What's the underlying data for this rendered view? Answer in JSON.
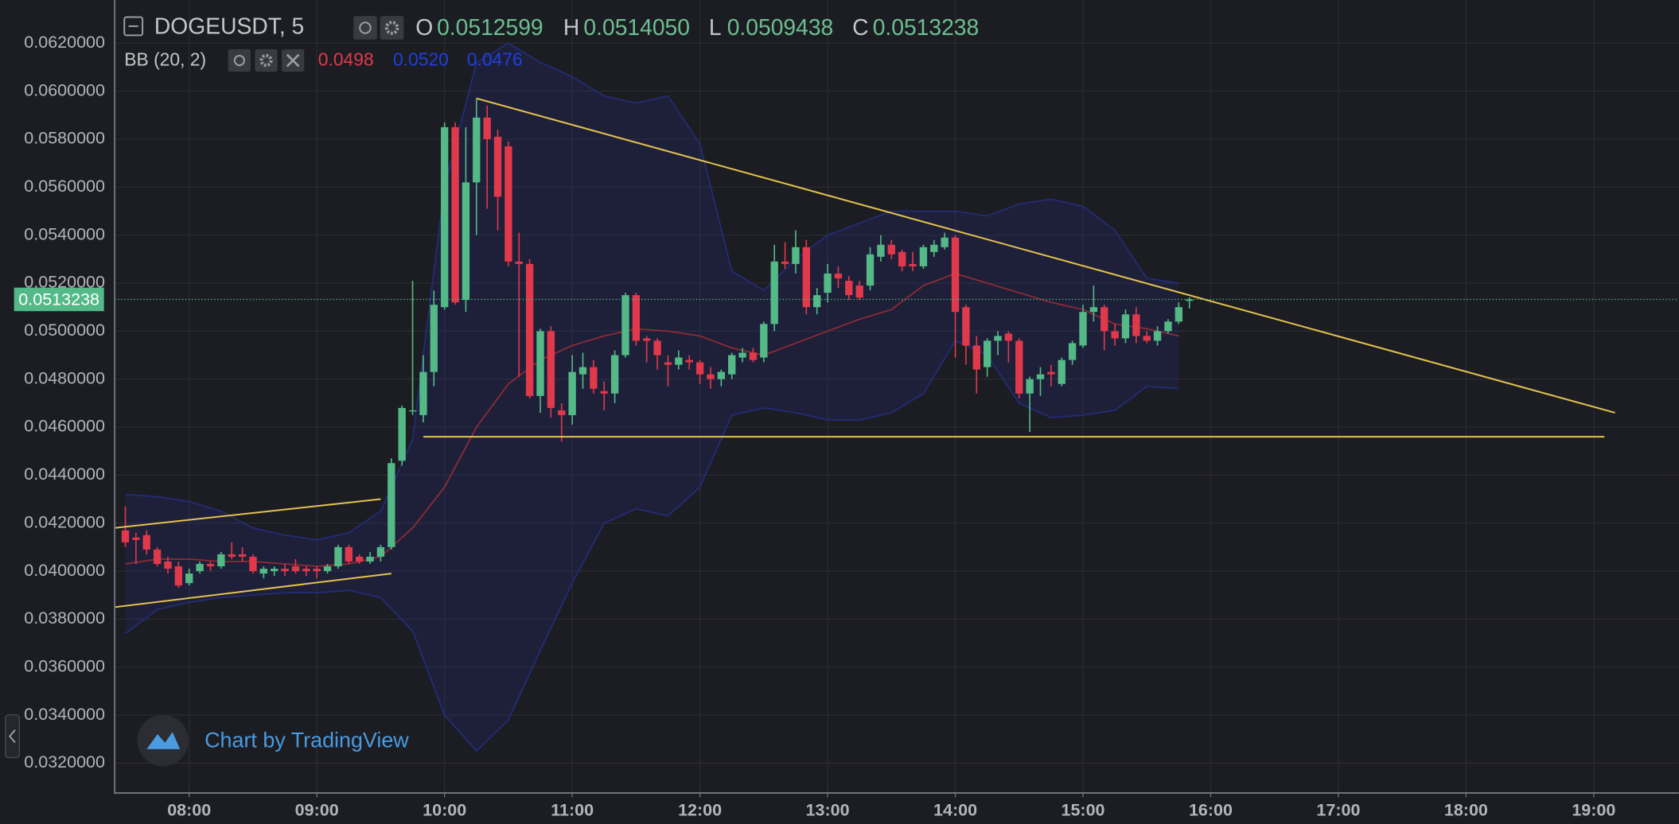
{
  "header": {
    "symbol": "DOGEUSDT, 5",
    "o_label": "O",
    "o": "0.0512599",
    "h_label": "H",
    "h": "0.0514050",
    "l_label": "L",
    "l": "0.0509438",
    "c_label": "C",
    "c": "0.0513238"
  },
  "indicator": {
    "name": "BB (20, 2)",
    "basis": "0.0498",
    "upper": "0.0520",
    "lower": "0.0476"
  },
  "watermark": "Chart by TradingView",
  "chart_data": {
    "type": "candlestick",
    "x": [
      "07:30",
      "07:35",
      "07:40",
      "07:45",
      "07:50",
      "07:55",
      "08:00",
      "08:05",
      "08:10",
      "08:15",
      "08:20",
      "08:25",
      "08:30",
      "08:35",
      "08:40",
      "08:45",
      "08:50",
      "08:55",
      "09:00",
      "09:05",
      "09:10",
      "09:15",
      "09:20",
      "09:25",
      "09:30",
      "09:35",
      "09:40",
      "09:45",
      "09:50",
      "09:55",
      "10:00",
      "10:05",
      "10:10",
      "10:15",
      "10:20",
      "10:25",
      "10:30",
      "10:35",
      "10:40",
      "10:45",
      "10:50",
      "10:55",
      "11:00",
      "11:05",
      "11:10",
      "11:15",
      "11:20",
      "11:25",
      "11:30",
      "11:35",
      "11:40",
      "11:45",
      "11:50",
      "11:55",
      "12:00",
      "12:05",
      "12:10",
      "12:15",
      "12:20",
      "12:25",
      "12:30",
      "12:35",
      "12:40",
      "12:45",
      "12:50",
      "12:55",
      "13:00",
      "13:05",
      "13:10",
      "13:15",
      "13:20",
      "13:25",
      "13:30",
      "13:35",
      "13:40",
      "13:45",
      "13:50",
      "13:55",
      "14:00",
      "14:05",
      "14:10",
      "14:15",
      "14:20",
      "14:25",
      "14:30",
      "14:35",
      "14:40",
      "14:45",
      "14:50",
      "14:55",
      "15:00",
      "15:05",
      "15:10",
      "15:15",
      "15:20",
      "15:25",
      "15:30",
      "15:35",
      "15:40",
      "15:45",
      "15:50"
    ],
    "open": [
      0.0417,
      0.0414,
      0.0415,
      0.0409,
      0.0404,
      0.0402,
      0.0395,
      0.04,
      0.0403,
      0.0402,
      0.0407,
      0.0407,
      0.0406,
      0.0399,
      0.04,
      0.0401,
      0.0402,
      0.0401,
      0.0401,
      0.04,
      0.0402,
      0.041,
      0.0406,
      0.0404,
      0.0406,
      0.041,
      0.0446,
      0.0467,
      0.0465,
      0.0483,
      0.051,
      0.0585,
      0.0513,
      0.0562,
      0.0589,
      0.0581,
      0.0577,
      0.0529,
      0.0528,
      0.0473,
      0.05,
      0.0467,
      0.0465,
      0.0482,
      0.0485,
      0.0475,
      0.0474,
      0.049,
      0.0515,
      0.0497,
      0.0496,
      0.0487,
      0.0486,
      0.0488,
      0.0487,
      0.0482,
      0.048,
      0.0482,
      0.0489,
      0.0491,
      0.0489,
      0.0503,
      0.0529,
      0.0528,
      0.0535,
      0.051,
      0.0516,
      0.0524,
      0.0521,
      0.0519,
      0.0519,
      0.0531,
      0.0536,
      0.0533,
      0.0528,
      0.0527,
      0.0533,
      0.0535,
      0.0539,
      0.051,
      0.0494,
      0.0485,
      0.0496,
      0.0499,
      0.0496,
      0.0474,
      0.048,
      0.0483,
      0.0478,
      0.0488,
      0.0494,
      0.0508,
      0.051,
      0.05,
      0.0497,
      0.0507,
      0.0498,
      0.0496,
      0.05,
      0.0504,
      0.0512599
    ],
    "high": [
      0.0427,
      0.0416,
      0.0417,
      0.041,
      0.0406,
      0.0404,
      0.0401,
      0.0404,
      0.0404,
      0.0408,
      0.0412,
      0.041,
      0.0407,
      0.0402,
      0.0402,
      0.0403,
      0.0405,
      0.0402,
      0.0402,
      0.0403,
      0.0411,
      0.0411,
      0.0407,
      0.0408,
      0.0411,
      0.0447,
      0.0469,
      0.0521,
      0.049,
      0.0517,
      0.0587,
      0.0587,
      0.0585,
      0.0597,
      0.0594,
      0.0584,
      0.0579,
      0.0541,
      0.053,
      0.0501,
      0.0502,
      0.047,
      0.049,
      0.0491,
      0.0488,
      0.0479,
      0.0492,
      0.0516,
      0.0516,
      0.0498,
      0.0497,
      0.049,
      0.0492,
      0.049,
      0.0488,
      0.0485,
      0.0484,
      0.0491,
      0.0493,
      0.0493,
      0.0504,
      0.0536,
      0.0537,
      0.0542,
      0.0538,
      0.0518,
      0.0528,
      0.0527,
      0.0523,
      0.0521,
      0.0535,
      0.054,
      0.0538,
      0.0534,
      0.0533,
      0.0536,
      0.0538,
      0.0541,
      0.054,
      0.0511,
      0.0498,
      0.0497,
      0.05,
      0.05,
      0.0497,
      0.0481,
      0.0485,
      0.0486,
      0.0489,
      0.0496,
      0.0511,
      0.0519,
      0.0511,
      0.0503,
      0.0509,
      0.051,
      0.05,
      0.0502,
      0.0505,
      0.0512,
      0.051405
    ],
    "low": [
      0.041,
      0.0403,
      0.0407,
      0.0402,
      0.0399,
      0.0393,
      0.0394,
      0.0399,
      0.04,
      0.0401,
      0.0405,
      0.0404,
      0.0399,
      0.0397,
      0.0398,
      0.0398,
      0.0399,
      0.0398,
      0.0397,
      0.0399,
      0.0401,
      0.0403,
      0.0403,
      0.0403,
      0.0404,
      0.0409,
      0.0444,
      0.0465,
      0.0462,
      0.0477,
      0.0509,
      0.0511,
      0.0508,
      0.054,
      0.0551,
      0.0542,
      0.0527,
      0.0481,
      0.0472,
      0.0466,
      0.0464,
      0.0454,
      0.0461,
      0.0476,
      0.0474,
      0.0467,
      0.047,
      0.0489,
      0.0494,
      0.0487,
      0.0484,
      0.0477,
      0.0484,
      0.0484,
      0.0478,
      0.0476,
      0.0477,
      0.048,
      0.0487,
      0.0487,
      0.0487,
      0.05,
      0.0526,
      0.0524,
      0.0507,
      0.0507,
      0.0512,
      0.0518,
      0.0513,
      0.0513,
      0.0517,
      0.0529,
      0.053,
      0.0525,
      0.0525,
      0.0526,
      0.0531,
      0.0534,
      0.0489,
      0.0486,
      0.0474,
      0.0481,
      0.049,
      0.0487,
      0.0472,
      0.0458,
      0.0473,
      0.0477,
      0.0477,
      0.0486,
      0.0493,
      0.0504,
      0.0492,
      0.0494,
      0.0495,
      0.0495,
      0.0495,
      0.0494,
      0.0499,
      0.0503,
      0.0509438
    ],
    "close": [
      0.0412,
      0.0413,
      0.0409,
      0.0403,
      0.0401,
      0.0394,
      0.0399,
      0.0403,
      0.0402,
      0.0407,
      0.0406,
      0.0406,
      0.04,
      0.0401,
      0.0401,
      0.04,
      0.04,
      0.04,
      0.04,
      0.0402,
      0.041,
      0.0404,
      0.0404,
      0.0406,
      0.041,
      0.0445,
      0.0468,
      0.0467,
      0.0483,
      0.0511,
      0.0585,
      0.0512,
      0.0562,
      0.0589,
      0.058,
      0.0556,
      0.0529,
      0.0528,
      0.0473,
      0.05,
      0.0468,
      0.0465,
      0.0483,
      0.0485,
      0.0476,
      0.0474,
      0.049,
      0.0515,
      0.0496,
      0.0496,
      0.049,
      0.0486,
      0.0489,
      0.0487,
      0.0482,
      0.048,
      0.0483,
      0.049,
      0.0491,
      0.0488,
      0.0503,
      0.0529,
      0.0528,
      0.0535,
      0.051,
      0.0515,
      0.0524,
      0.0522,
      0.0515,
      0.0514,
      0.0532,
      0.0536,
      0.0532,
      0.0527,
      0.0527,
      0.0535,
      0.0536,
      0.0539,
      0.0508,
      0.0494,
      0.0484,
      0.0496,
      0.0498,
      0.0496,
      0.0474,
      0.048,
      0.0482,
      0.0482,
      0.0488,
      0.0495,
      0.0508,
      0.051,
      0.05,
      0.0497,
      0.0507,
      0.0498,
      0.0496,
      0.05,
      0.0504,
      0.051,
      0.0513238
    ],
    "up_color": "#53b987",
    "down_color": "#e0394b",
    "xlim": [
      "07:25",
      "19:40"
    ],
    "xticks": [
      "08:00",
      "09:00",
      "10:00",
      "11:00",
      "12:00",
      "13:00",
      "14:00",
      "15:00",
      "16:00",
      "17:00",
      "18:00",
      "19:00"
    ],
    "ylim": [
      0.0308,
      0.0638
    ],
    "yticks": [
      {
        "value": 0.032,
        "label": "0.0320000"
      },
      {
        "value": 0.034,
        "label": "0.0340000"
      },
      {
        "value": 0.036,
        "label": "0.0360000"
      },
      {
        "value": 0.038,
        "label": "0.0380000"
      },
      {
        "value": 0.04,
        "label": "0.0400000"
      },
      {
        "value": 0.042,
        "label": "0.0420000"
      },
      {
        "value": 0.044,
        "label": "0.0440000"
      },
      {
        "value": 0.046,
        "label": "0.0460000"
      },
      {
        "value": 0.048,
        "label": "0.0480000"
      },
      {
        "value": 0.05,
        "label": "0.0500000"
      },
      {
        "value": 0.052,
        "label": "0.0520000"
      },
      {
        "value": 0.054,
        "label": "0.0540000"
      },
      {
        "value": 0.056,
        "label": "0.0560000"
      },
      {
        "value": 0.058,
        "label": "0.0580000"
      },
      {
        "value": 0.06,
        "label": "0.0600000"
      },
      {
        "value": 0.062,
        "label": "0.0620000"
      }
    ],
    "grid": true,
    "bollinger": {
      "x": [
        "07:30",
        "07:45",
        "08:00",
        "08:15",
        "08:30",
        "08:45",
        "09:00",
        "09:15",
        "09:30",
        "09:45",
        "10:00",
        "10:15",
        "10:30",
        "10:45",
        "11:00",
        "11:15",
        "11:30",
        "11:45",
        "12:00",
        "12:15",
        "12:30",
        "12:45",
        "13:00",
        "13:15",
        "13:30",
        "13:45",
        "14:00",
        "14:15",
        "14:30",
        "14:45",
        "15:00",
        "15:15",
        "15:30",
        "15:45"
      ],
      "upper": [
        0.0432,
        0.0431,
        0.0429,
        0.0425,
        0.0418,
        0.0415,
        0.0413,
        0.0416,
        0.0425,
        0.0455,
        0.056,
        0.0612,
        0.062,
        0.0612,
        0.0606,
        0.0598,
        0.0595,
        0.0598,
        0.0578,
        0.0525,
        0.0517,
        0.053,
        0.054,
        0.0545,
        0.055,
        0.055,
        0.055,
        0.0548,
        0.0553,
        0.0555,
        0.0552,
        0.0542,
        0.0522,
        0.052
      ],
      "basis": [
        0.0403,
        0.0405,
        0.0405,
        0.0404,
        0.0404,
        0.0403,
        0.0402,
        0.0403,
        0.0406,
        0.0418,
        0.0435,
        0.046,
        0.0478,
        0.0488,
        0.0494,
        0.0498,
        0.0501,
        0.05,
        0.0498,
        0.0493,
        0.049,
        0.0495,
        0.05,
        0.0505,
        0.0509,
        0.0519,
        0.0524,
        0.052,
        0.0516,
        0.0512,
        0.0509,
        0.0503,
        0.0501,
        0.0498
      ],
      "lower": [
        0.0374,
        0.0384,
        0.0387,
        0.0389,
        0.039,
        0.0391,
        0.0391,
        0.0392,
        0.0389,
        0.0375,
        0.034,
        0.0325,
        0.0338,
        0.0367,
        0.0395,
        0.042,
        0.0426,
        0.0423,
        0.0435,
        0.0465,
        0.0468,
        0.0466,
        0.0463,
        0.0463,
        0.0466,
        0.0474,
        0.0496,
        0.049,
        0.047,
        0.0464,
        0.0465,
        0.0467,
        0.0477,
        0.0476
      ],
      "band_color": "#232c78",
      "basis_color": "#8e2b36"
    },
    "trendlines": [
      {
        "x": [
          "07:25",
          "09:30"
        ],
        "y": [
          0.0418,
          0.043
        ]
      },
      {
        "x": [
          "07:25",
          "09:35"
        ],
        "y": [
          0.0385,
          0.0399
        ]
      },
      {
        "x": [
          "10:15",
          "19:10"
        ],
        "y": [
          0.0597,
          0.0466
        ]
      },
      {
        "x": [
          "09:50",
          "19:05"
        ],
        "y": [
          0.0456,
          0.0456
        ]
      }
    ],
    "trendline_color": "#e3c24f",
    "last_price": {
      "value": 0.0513238,
      "label": "0.0513238"
    },
    "last_price_color": "#53b987"
  }
}
